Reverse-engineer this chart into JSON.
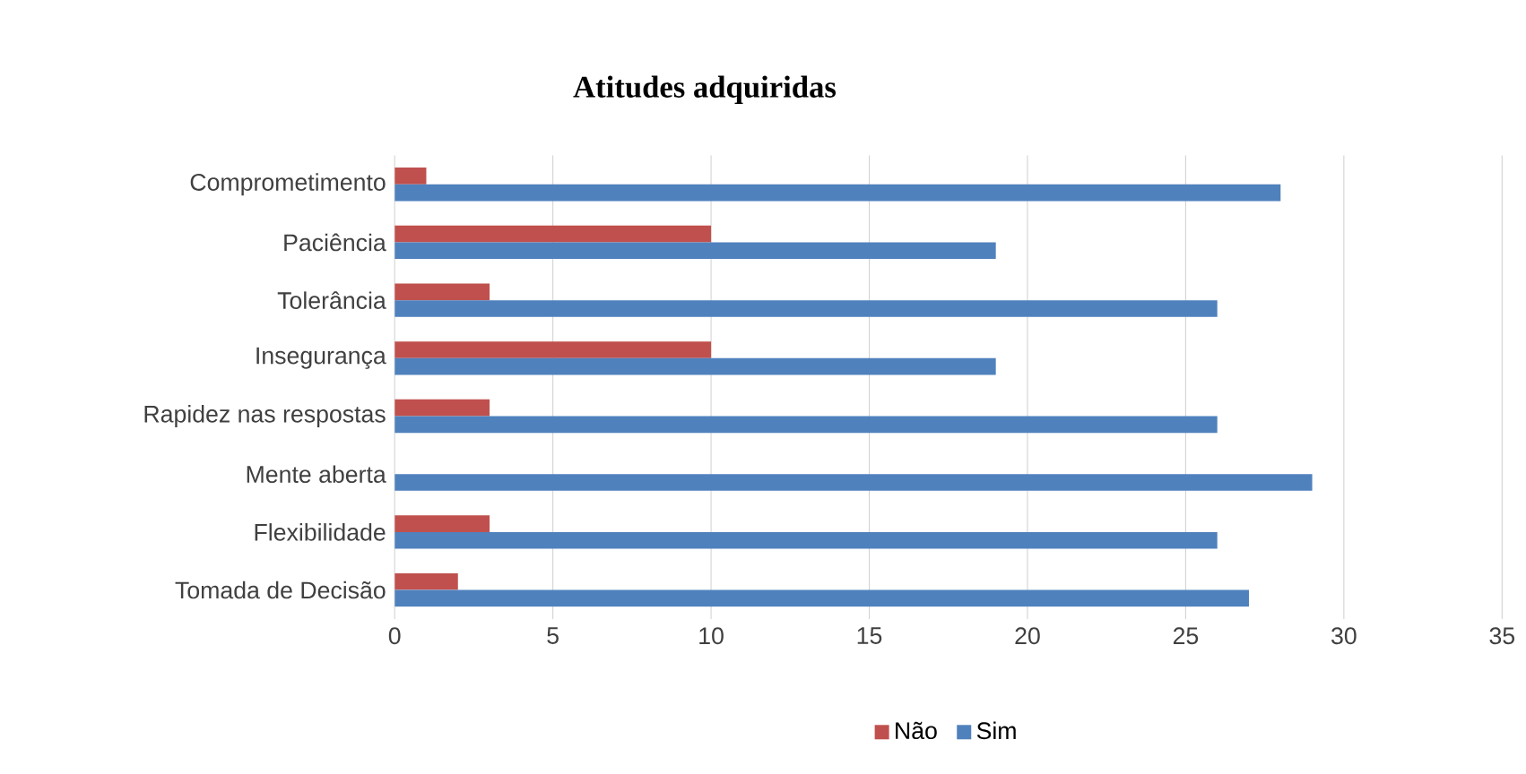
{
  "chart_data": {
    "type": "bar",
    "orientation": "horizontal",
    "title": "Atitudes adquiridas",
    "categories": [
      "Comprometimento",
      "Paciência",
      "Tolerância",
      "Insegurança",
      "Rapidez nas respostas",
      "Mente aberta",
      "Flexibilidade",
      "Tomada de Decisão"
    ],
    "series": [
      {
        "name": "Não",
        "color": "#c0504d",
        "values": [
          1,
          10,
          3,
          10,
          3,
          0,
          3,
          2
        ]
      },
      {
        "name": "Sim",
        "color": "#4f81bd",
        "values": [
          28,
          19,
          26,
          19,
          26,
          29,
          26,
          27
        ]
      }
    ],
    "xlim": [
      0,
      35
    ],
    "xticks": [
      0,
      5,
      10,
      15,
      20,
      25,
      30,
      35
    ],
    "grid": "x",
    "legend": "bottom"
  }
}
